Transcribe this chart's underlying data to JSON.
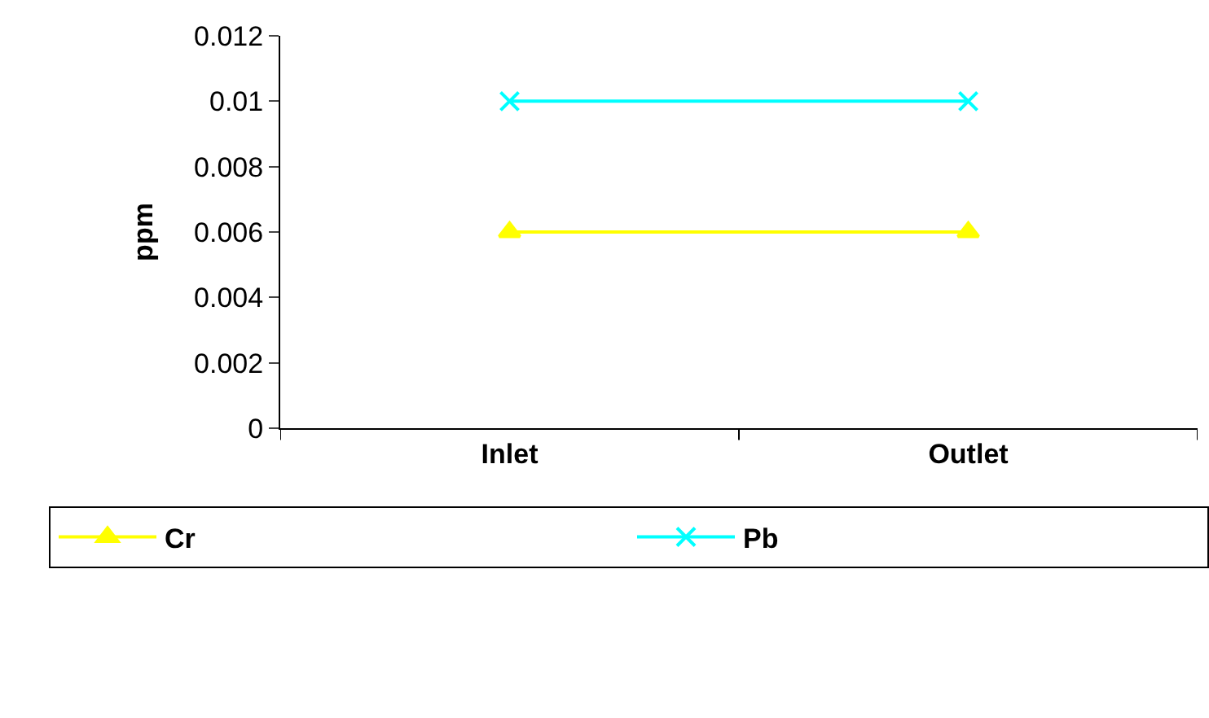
{
  "chart_data": {
    "type": "line",
    "ylabel": "ppm",
    "categories": [
      "Inlet",
      "Outlet"
    ],
    "series": [
      {
        "name": "Cr",
        "color": "#ffff00",
        "marker": "triangle",
        "values": [
          0.006,
          0.006
        ]
      },
      {
        "name": "Pb",
        "color": "#00ffff",
        "marker": "cross",
        "values": [
          0.01,
          0.01
        ]
      }
    ],
    "ylim": [
      0,
      0.012
    ],
    "yticks": [
      0,
      0.002,
      0.004,
      0.006,
      0.008,
      0.01,
      0.012
    ],
    "grid": false,
    "legend": "bottom"
  }
}
